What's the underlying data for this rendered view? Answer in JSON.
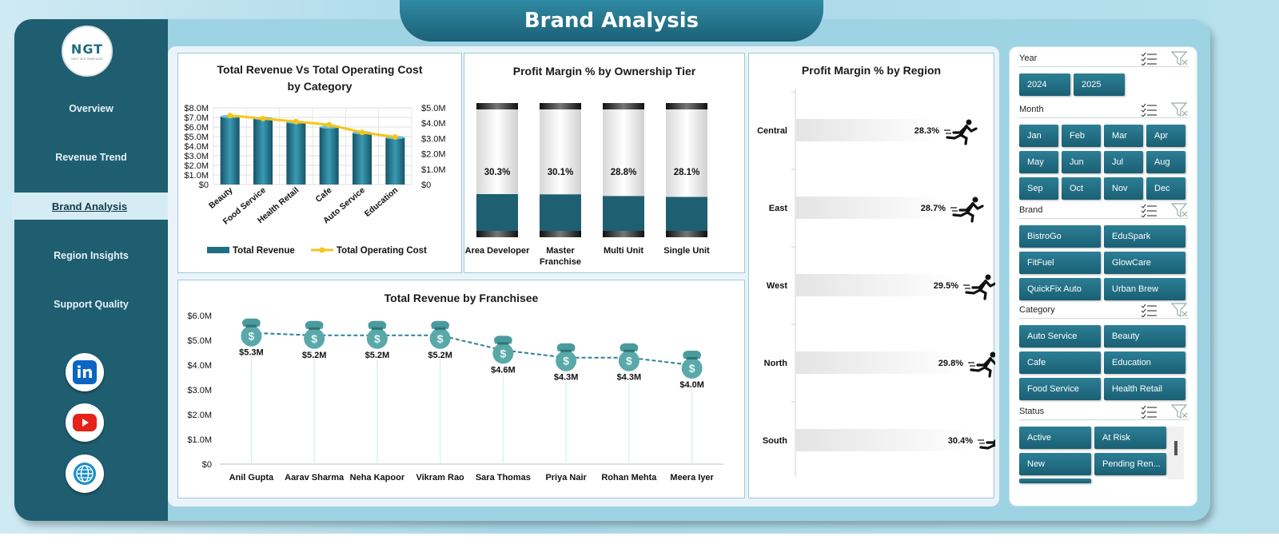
{
  "header": {
    "title": "Brand Analysis"
  },
  "logo": {
    "main": "NGT",
    "sub": "NEXT GEN TEMPLATES"
  },
  "sidebar": {
    "items": [
      {
        "label": "Overview",
        "active": false
      },
      {
        "label": "Revenue Trend",
        "active": false
      },
      {
        "label": "Brand Analysis",
        "active": true
      },
      {
        "label": "Region Insights",
        "active": false
      },
      {
        "label": "Support Quality",
        "active": false
      }
    ],
    "social": [
      {
        "icon": "linkedin-icon",
        "text": "in",
        "color": "#0a66c2"
      },
      {
        "icon": "youtube-icon",
        "color": "#e62117"
      },
      {
        "icon": "globe-icon",
        "color": "#1a8fc9"
      }
    ]
  },
  "charts": {
    "revenue_vs_cost": {
      "title_line1": "Total Revenue  Vs Total Operating Cost",
      "title_line2": "by Category",
      "left_ticks": [
        "$8.0M",
        "$7.0M",
        "$6.0M",
        "$5.0M",
        "$4.0M",
        "$3.0M",
        "$2.0M",
        "$1.0M",
        "$0"
      ],
      "right_ticks": [
        "$5.0M",
        "$4.0M",
        "$3.0M",
        "$2.0M",
        "$1.0M",
        "$0"
      ],
      "legend_revenue": "Total Revenue",
      "legend_cost": "Total Operating Cost"
    },
    "ownership": {
      "title": "Profit Margin % by Ownership Tier"
    },
    "region": {
      "title": "Profit Margin % by Region"
    },
    "franchisee": {
      "title": "Total Revenue  by Franchisee",
      "y_ticks": [
        "$6.0M",
        "$5.0M",
        "$4.0M",
        "$3.0M",
        "$2.0M",
        "$1.0M",
        "$0"
      ]
    }
  },
  "chart_data": [
    {
      "type": "bar",
      "categories": [
        "Beauty",
        "Food Service",
        "Health Retail",
        "Cafe",
        "Auto Service",
        "Education"
      ],
      "series": [
        {
          "name": "Total Revenue",
          "values": [
            7.1,
            6.9,
            6.5,
            6.0,
            5.4,
            4.9
          ],
          "axis": "left"
        },
        {
          "name": "Total Operating Cost",
          "values": [
            4.5,
            4.3,
            4.1,
            3.9,
            3.4,
            3.1
          ],
          "axis": "right",
          "type": "line"
        }
      ],
      "ylim": [
        0,
        8
      ],
      "y2lim": [
        0,
        5
      ],
      "colors": {
        "revenue": "#1f6e85",
        "cost": "#f5c518"
      }
    },
    {
      "type": "bar",
      "categories": [
        "Area Developer",
        "Master Franchise",
        "Multi Unit",
        "Single Unit"
      ],
      "values": [
        30.3,
        30.1,
        28.8,
        28.1
      ],
      "labels": [
        "30.3%",
        "30.1%",
        "28.8%",
        "28.1%"
      ],
      "category_lines": [
        [
          "Area Developer"
        ],
        [
          "Master",
          "Franchise"
        ],
        [
          "Multi Unit"
        ],
        [
          "Single Unit"
        ]
      ],
      "ylim": [
        0,
        100
      ]
    },
    {
      "type": "bar",
      "orientation": "horizontal",
      "categories": [
        "Central",
        "East",
        "West",
        "North",
        "South"
      ],
      "values": [
        28.3,
        28.7,
        29.5,
        29.8,
        30.4
      ],
      "labels": [
        "28.3%",
        "28.7%",
        "29.5%",
        "29.8%",
        "30.4%"
      ]
    },
    {
      "type": "line",
      "categories": [
        "Anil Gupta",
        "Aarav Sharma",
        "Neha Kapoor",
        "Vikram Rao",
        "Sara Thomas",
        "Priya Nair",
        "Rohan Mehta",
        "Meera Iyer"
      ],
      "values": [
        5.3,
        5.2,
        5.2,
        5.2,
        4.6,
        4.3,
        4.3,
        4.0
      ],
      "labels": [
        "$5.3M",
        "$5.2M",
        "$5.2M",
        "$5.2M",
        "$4.6M",
        "$4.3M",
        "$4.3M",
        "$4.0M"
      ],
      "ylim": [
        0,
        6
      ]
    }
  ],
  "slicers": {
    "year": {
      "label": "Year",
      "options": [
        "2024",
        "2025"
      ]
    },
    "month": {
      "label": "Month",
      "options": [
        "Jan",
        "Feb",
        "Mar",
        "Apr",
        "May",
        "Jun",
        "Jul",
        "Aug",
        "Sep",
        "Oct",
        "Nov",
        "Dec"
      ]
    },
    "brand": {
      "label": "Brand",
      "options": [
        "BistroGo",
        "EduSpark",
        "FitFuel",
        "GlowCare",
        "QuickFix Auto",
        "Urban Brew"
      ]
    },
    "category": {
      "label": "Category",
      "options": [
        "Auto Service",
        "Beauty",
        "Cafe",
        "Education",
        "Food Service",
        "Health Retail"
      ]
    },
    "status": {
      "label": "Status",
      "options": [
        "Active",
        "At Risk",
        "New",
        "Pending Ren..."
      ]
    }
  }
}
